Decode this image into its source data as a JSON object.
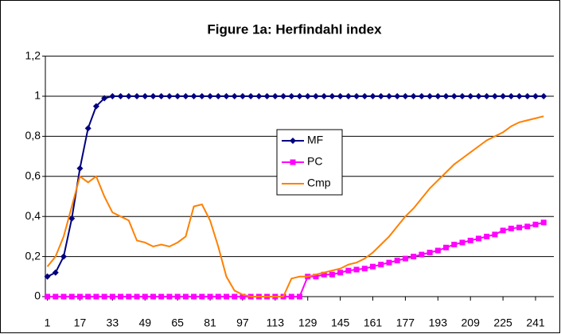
{
  "chart_data": {
    "type": "line",
    "title": "Figure 1a: Herfindahl index",
    "x": [
      1,
      5,
      9,
      13,
      17,
      21,
      25,
      29,
      33,
      37,
      41,
      45,
      49,
      53,
      57,
      61,
      65,
      69,
      73,
      77,
      81,
      85,
      89,
      93,
      97,
      101,
      105,
      109,
      113,
      117,
      121,
      125,
      129,
      133,
      137,
      141,
      145,
      149,
      153,
      157,
      161,
      165,
      169,
      173,
      177,
      181,
      185,
      189,
      193,
      197,
      201,
      205,
      209,
      213,
      217,
      221,
      225,
      229,
      233,
      237,
      241,
      245
    ],
    "xlim": [
      0,
      250
    ],
    "xticks": [
      1,
      17,
      33,
      49,
      65,
      81,
      97,
      113,
      129,
      145,
      161,
      177,
      193,
      209,
      225,
      241
    ],
    "ylim": [
      0,
      1.2
    ],
    "yticks": [
      0,
      {
        "value": 0.2,
        "label": "0,2"
      },
      {
        "value": 0.4,
        "label": "0,4"
      },
      {
        "value": 0.6,
        "label": "0,6"
      },
      {
        "value": 0.8,
        "label": "0,8"
      },
      1,
      {
        "value": 1.2,
        "label": "1,2"
      }
    ],
    "grid": true,
    "legend": "center",
    "series": [
      {
        "name": "MF",
        "color": "#000080",
        "marker": "diamond",
        "values": [
          0.1,
          0.12,
          0.2,
          0.39,
          0.64,
          0.84,
          0.95,
          0.99,
          1,
          1,
          1,
          1,
          1,
          1,
          1,
          1,
          1,
          1,
          1,
          1,
          1,
          1,
          1,
          1,
          1,
          1,
          1,
          1,
          1,
          1,
          1,
          1,
          1,
          1,
          1,
          1,
          1,
          1,
          1,
          1,
          1,
          1,
          1,
          1,
          1,
          1,
          1,
          1,
          1,
          1,
          1,
          1,
          1,
          1,
          1,
          1,
          1,
          1,
          1,
          1,
          1,
          1
        ]
      },
      {
        "name": "PC",
        "color": "#ff00ff",
        "marker": "square",
        "values": [
          0,
          0,
          0,
          0,
          0,
          0,
          0,
          0,
          0,
          0,
          0,
          0,
          0,
          0,
          0,
          0,
          0,
          0,
          0,
          0,
          0,
          0,
          0,
          0,
          0,
          0,
          0,
          0,
          0,
          0,
          0,
          0,
          0.1,
          0.1,
          0.11,
          0.11,
          0.12,
          0.13,
          0.135,
          0.14,
          0.15,
          0.16,
          0.17,
          0.18,
          0.19,
          0.2,
          0.21,
          0.22,
          0.23,
          0.245,
          0.26,
          0.27,
          0.28,
          0.29,
          0.3,
          0.31,
          0.33,
          0.34,
          0.345,
          0.35,
          0.36,
          0.37
        ]
      },
      {
        "name": "Cmp",
        "color": "#ff8000",
        "marker": "none",
        "values": [
          0.15,
          0.2,
          0.3,
          0.45,
          0.6,
          0.57,
          0.6,
          0.5,
          0.42,
          0.4,
          0.38,
          0.28,
          0.27,
          0.25,
          0.26,
          0.25,
          0.27,
          0.3,
          0.45,
          0.46,
          0.38,
          0.25,
          0.1,
          0.03,
          0.01,
          0,
          0,
          0,
          0,
          0,
          0.09,
          0.1,
          0.1,
          0.11,
          0.12,
          0.13,
          0.14,
          0.16,
          0.17,
          0.19,
          0.22,
          0.26,
          0.3,
          0.35,
          0.4,
          0.44,
          0.49,
          0.54,
          0.58,
          0.62,
          0.66,
          0.69,
          0.72,
          0.75,
          0.78,
          0.8,
          0.82,
          0.85,
          0.87,
          0.88,
          0.89,
          0.9
        ]
      }
    ]
  }
}
